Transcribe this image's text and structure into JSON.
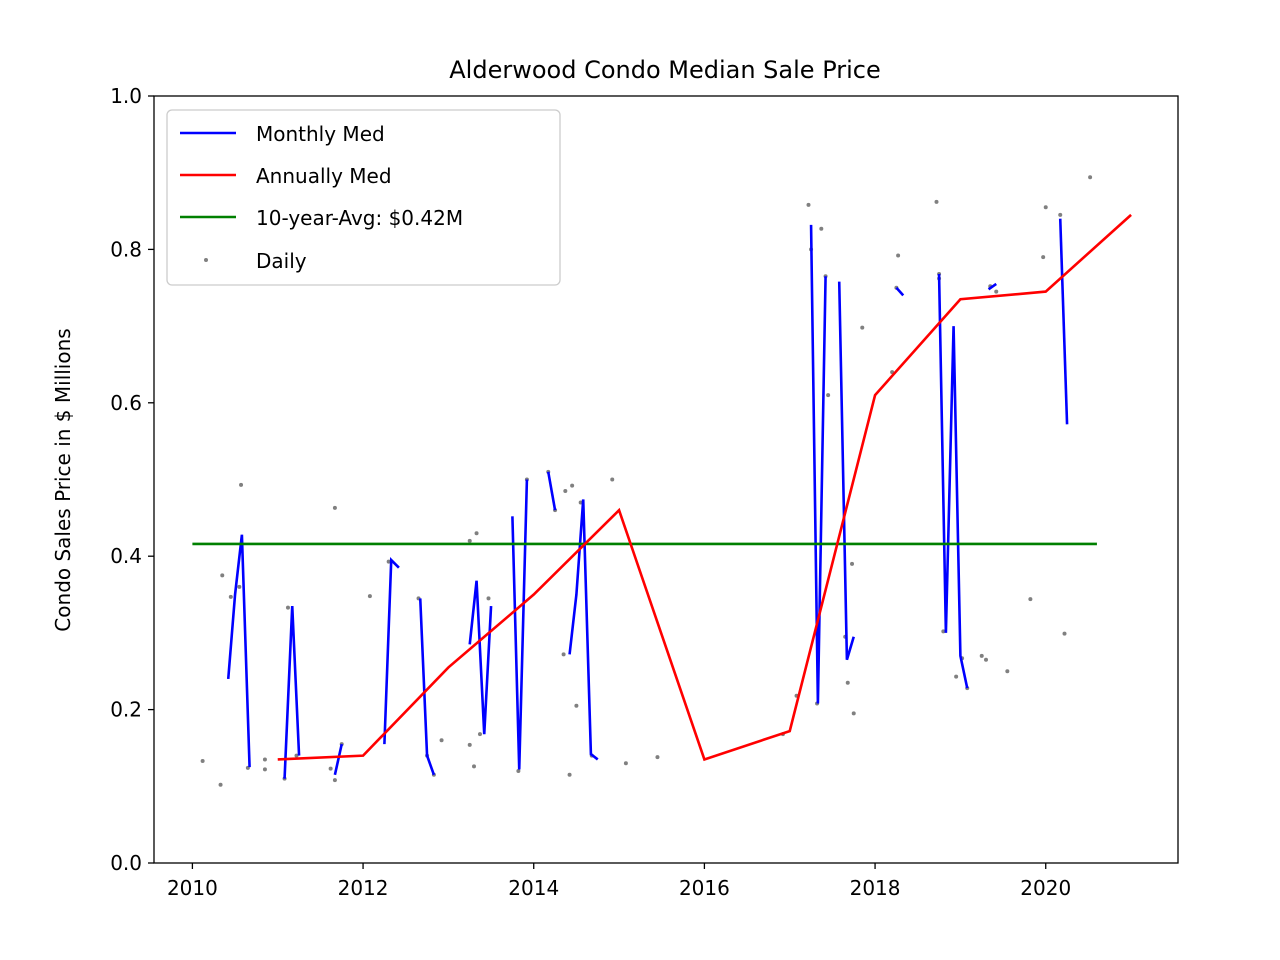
{
  "chart_data": {
    "type": "line",
    "title": "Alderwood Condo Median Sale Price",
    "xlabel": "",
    "ylabel": "Condo Sales Price in $ Millions",
    "xlim": [
      2009.55,
      2021.55
    ],
    "ylim": [
      0.0,
      1.0
    ],
    "xticks": [
      2010,
      2012,
      2014,
      2016,
      2018,
      2020
    ],
    "xtick_labels": [
      "2010",
      "2012",
      "2014",
      "2016",
      "2018",
      "2020"
    ],
    "yticks": [
      0.0,
      0.2,
      0.4,
      0.6,
      0.8,
      1.0
    ],
    "ytick_labels": [
      "0.0",
      "0.2",
      "0.4",
      "0.6",
      "0.8",
      "1.0"
    ],
    "grid": false,
    "legend_position": "upper left",
    "colors": {
      "monthly": "#0000ff",
      "annual": "#ff0000",
      "avg": "#008000",
      "daily": "#808080"
    },
    "series": [
      {
        "name": "Monthly Med",
        "type": "line",
        "color": "#0000ff",
        "segments": [
          [
            [
              2010.42,
              0.24
            ],
            [
              2010.5,
              0.35
            ],
            [
              2010.58,
              0.428
            ],
            [
              2010.67,
              0.125
            ]
          ],
          [
            [
              2011.08,
              0.11
            ],
            [
              2011.17,
              0.335
            ],
            [
              2011.25,
              0.14
            ]
          ],
          [
            [
              2011.67,
              0.115
            ],
            [
              2011.75,
              0.155
            ]
          ],
          [
            [
              2012.25,
              0.155
            ],
            [
              2012.33,
              0.395
            ],
            [
              2012.42,
              0.385
            ]
          ],
          [
            [
              2012.67,
              0.345
            ],
            [
              2012.75,
              0.14
            ],
            [
              2012.83,
              0.115
            ]
          ],
          [
            [
              2013.25,
              0.285
            ],
            [
              2013.33,
              0.368
            ],
            [
              2013.42,
              0.168
            ],
            [
              2013.5,
              0.335
            ]
          ],
          [
            [
              2013.75,
              0.452
            ],
            [
              2013.83,
              0.122
            ],
            [
              2013.92,
              0.5
            ]
          ],
          [
            [
              2014.17,
              0.51
            ],
            [
              2014.25,
              0.46
            ]
          ],
          [
            [
              2014.42,
              0.272
            ],
            [
              2014.5,
              0.35
            ],
            [
              2014.58,
              0.474
            ],
            [
              2014.67,
              0.142
            ],
            [
              2014.75,
              0.135
            ]
          ],
          [
            [
              2017.25,
              0.832
            ],
            [
              2017.33,
              0.208
            ],
            [
              2017.42,
              0.765
            ]
          ],
          [
            [
              2017.58,
              0.758
            ],
            [
              2017.67,
              0.265
            ],
            [
              2017.75,
              0.295
            ]
          ],
          [
            [
              2018.25,
              0.75
            ],
            [
              2018.33,
              0.74
            ]
          ],
          [
            [
              2018.75,
              0.768
            ],
            [
              2018.83,
              0.3
            ],
            [
              2018.92,
              0.7
            ],
            [
              2019.0,
              0.27
            ],
            [
              2019.08,
              0.228
            ]
          ],
          [
            [
              2019.33,
              0.748
            ],
            [
              2019.42,
              0.755
            ]
          ],
          [
            [
              2020.17,
              0.84
            ],
            [
              2020.25,
              0.572
            ]
          ]
        ]
      },
      {
        "name": "Annually Med",
        "type": "line",
        "color": "#ff0000",
        "x": [
          2011,
          2012,
          2013,
          2014,
          2015,
          2016,
          2017,
          2018,
          2019,
          2020,
          2021
        ],
        "y": [
          0.135,
          0.14,
          0.255,
          0.35,
          0.46,
          0.135,
          0.172,
          0.61,
          0.735,
          0.745,
          0.845
        ]
      },
      {
        "name": "10-year-Avg: $0.42M",
        "type": "line",
        "color": "#008000",
        "x": [
          2010.0,
          2020.6
        ],
        "y": [
          0.416,
          0.416
        ]
      },
      {
        "name": "Daily",
        "type": "scatter",
        "color": "#808080",
        "points": [
          [
            2010.12,
            0.133
          ],
          [
            2010.33,
            0.102
          ],
          [
            2010.35,
            0.375
          ],
          [
            2010.45,
            0.347
          ],
          [
            2010.55,
            0.36
          ],
          [
            2010.57,
            0.493
          ],
          [
            2010.65,
            0.124
          ],
          [
            2010.85,
            0.122
          ],
          [
            2010.85,
            0.135
          ],
          [
            2011.08,
            0.11
          ],
          [
            2011.12,
            0.333
          ],
          [
            2011.22,
            0.14
          ],
          [
            2011.67,
            0.463
          ],
          [
            2011.62,
            0.123
          ],
          [
            2011.67,
            0.108
          ],
          [
            2011.75,
            0.155
          ],
          [
            2012.08,
            0.348
          ],
          [
            2012.3,
            0.393
          ],
          [
            2012.65,
            0.345
          ],
          [
            2012.75,
            0.14
          ],
          [
            2012.83,
            0.115
          ],
          [
            2012.92,
            0.16
          ],
          [
            2013.25,
            0.42
          ],
          [
            2013.25,
            0.154
          ],
          [
            2013.3,
            0.126
          ],
          [
            2013.33,
            0.43
          ],
          [
            2013.37,
            0.168
          ],
          [
            2013.47,
            0.345
          ],
          [
            2013.82,
            0.12
          ],
          [
            2013.92,
            0.5
          ],
          [
            2014.17,
            0.51
          ],
          [
            2014.25,
            0.46
          ],
          [
            2014.35,
            0.272
          ],
          [
            2014.37,
            0.485
          ],
          [
            2014.42,
            0.115
          ],
          [
            2014.45,
            0.492
          ],
          [
            2014.5,
            0.205
          ],
          [
            2014.55,
            0.47
          ],
          [
            2014.68,
            0.14
          ],
          [
            2014.92,
            0.5
          ],
          [
            2015.08,
            0.13
          ],
          [
            2015.45,
            0.138
          ],
          [
            2016.92,
            0.168
          ],
          [
            2017.08,
            0.218
          ],
          [
            2017.22,
            0.858
          ],
          [
            2017.25,
            0.8
          ],
          [
            2017.32,
            0.208
          ],
          [
            2017.37,
            0.827
          ],
          [
            2017.42,
            0.765
          ],
          [
            2017.45,
            0.61
          ],
          [
            2017.65,
            0.295
          ],
          [
            2017.68,
            0.235
          ],
          [
            2017.73,
            0.39
          ],
          [
            2017.75,
            0.195
          ],
          [
            2017.85,
            0.698
          ],
          [
            2018.2,
            0.64
          ],
          [
            2018.25,
            0.75
          ],
          [
            2018.27,
            0.792
          ],
          [
            2018.72,
            0.862
          ],
          [
            2018.75,
            0.762
          ],
          [
            2018.75,
            0.768
          ],
          [
            2018.8,
            0.302
          ],
          [
            2018.95,
            0.243
          ],
          [
            2019.02,
            0.267
          ],
          [
            2019.08,
            0.228
          ],
          [
            2019.25,
            0.27
          ],
          [
            2019.3,
            0.265
          ],
          [
            2019.35,
            0.752
          ],
          [
            2019.42,
            0.745
          ],
          [
            2019.55,
            0.25
          ],
          [
            2019.82,
            0.344
          ],
          [
            2019.97,
            0.79
          ],
          [
            2020.0,
            0.855
          ],
          [
            2020.17,
            0.845
          ],
          [
            2020.22,
            0.299
          ],
          [
            2020.52,
            0.894
          ]
        ]
      }
    ],
    "legend": [
      "Monthly Med",
      "Annually Med",
      "10-year-Avg: $0.42M",
      "Daily"
    ]
  }
}
